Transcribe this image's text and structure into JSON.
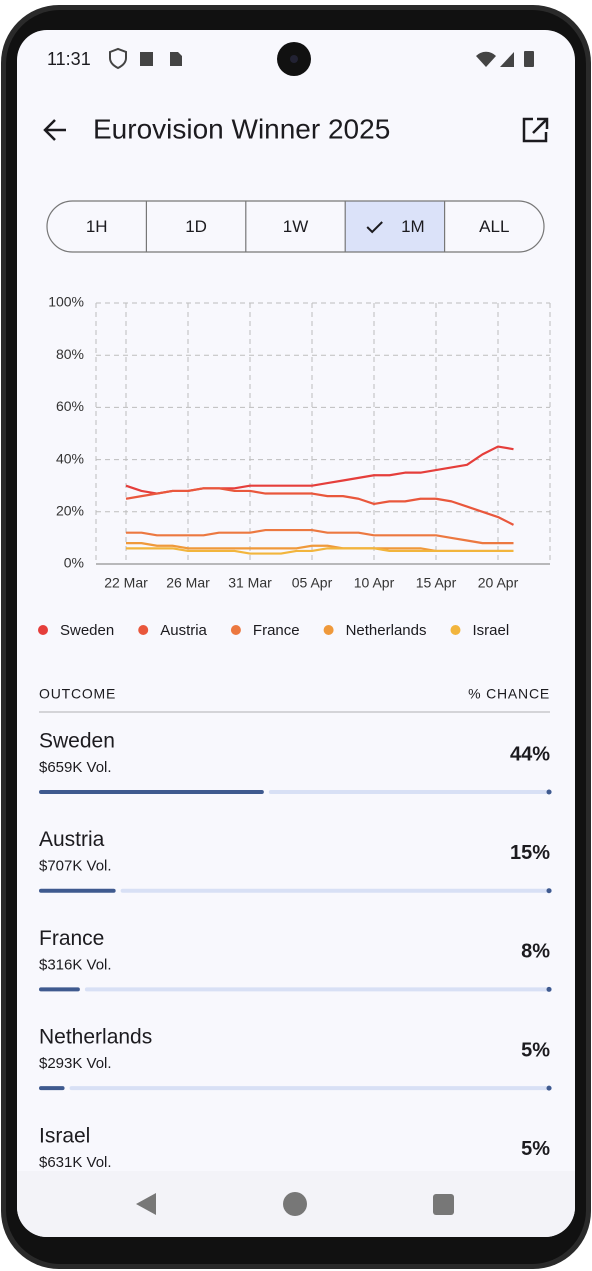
{
  "status_bar": {
    "time": "11:31"
  },
  "header": {
    "title": "Eurovision Winner 2025"
  },
  "range_selector": {
    "options": [
      "1H",
      "1D",
      "1W",
      "1M",
      "ALL"
    ],
    "selected": "1M"
  },
  "chart_data": {
    "type": "line",
    "categories": [
      "22 Mar",
      null,
      null,
      null,
      "26 Mar",
      null,
      null,
      null,
      "31 Mar",
      null,
      null,
      null,
      "05 Apr",
      null,
      null,
      null,
      "10 Apr",
      null,
      null,
      null,
      "15 Apr",
      null,
      null,
      null,
      "20 Apr",
      null
    ],
    "series": [
      {
        "name": "Sweden",
        "color": "#e53e3b",
        "values": [
          30,
          28,
          27,
          28,
          28,
          29,
          29,
          29,
          30,
          30,
          30,
          30,
          30,
          31,
          32,
          33,
          34,
          34,
          35,
          35,
          36,
          37,
          38,
          42,
          45,
          44
        ]
      },
      {
        "name": "Austria",
        "color": "#e9573c",
        "values": [
          25,
          26,
          27,
          28,
          28,
          29,
          29,
          28,
          28,
          27,
          27,
          27,
          27,
          26,
          26,
          25,
          23,
          24,
          24,
          25,
          25,
          24,
          22,
          20,
          18,
          15
        ]
      },
      {
        "name": "France",
        "color": "#ec7840",
        "values": [
          12,
          12,
          11,
          11,
          11,
          11,
          12,
          12,
          12,
          13,
          13,
          13,
          13,
          12,
          12,
          12,
          11,
          11,
          11,
          11,
          11,
          10,
          9,
          8,
          8,
          8
        ]
      },
      {
        "name": "Netherlands",
        "color": "#ef993b",
        "values": [
          8,
          8,
          7,
          7,
          6,
          6,
          6,
          6,
          6,
          6,
          6,
          6,
          7,
          7,
          6,
          6,
          6,
          6,
          6,
          6,
          5,
          5,
          5,
          5,
          5,
          5
        ]
      },
      {
        "name": "Israel",
        "color": "#f2b53d",
        "values": [
          6,
          6,
          6,
          6,
          5,
          5,
          5,
          5,
          4,
          4,
          4,
          5,
          5,
          6,
          6,
          6,
          6,
          5,
          5,
          5,
          5,
          5,
          5,
          5,
          5,
          5
        ]
      }
    ],
    "ylim": [
      0,
      100
    ],
    "yticks": [
      {
        "value": 0,
        "label": "0%"
      },
      {
        "value": 20,
        "label": "20%"
      },
      {
        "value": 40,
        "label": "40%"
      },
      {
        "value": 60,
        "label": "60%"
      },
      {
        "value": 80,
        "label": "80%"
      },
      {
        "value": 100,
        "label": "100%"
      }
    ],
    "grid": true
  },
  "outcomes": {
    "headers": [
      "OUTCOME",
      "% CHANCE"
    ],
    "items": [
      {
        "name": "Sweden",
        "volume": "$659K Vol.",
        "chance": 44,
        "chance_label": "44%"
      },
      {
        "name": "Austria",
        "volume": "$707K Vol.",
        "chance": 15,
        "chance_label": "15%"
      },
      {
        "name": "France",
        "volume": "$316K Vol.",
        "chance": 8,
        "chance_label": "8%"
      },
      {
        "name": "Netherlands",
        "volume": "$293K Vol.",
        "chance": 5,
        "chance_label": "5%"
      },
      {
        "name": "Israel",
        "volume": "$631K Vol.",
        "chance": 5,
        "chance_label": "5%"
      }
    ]
  }
}
